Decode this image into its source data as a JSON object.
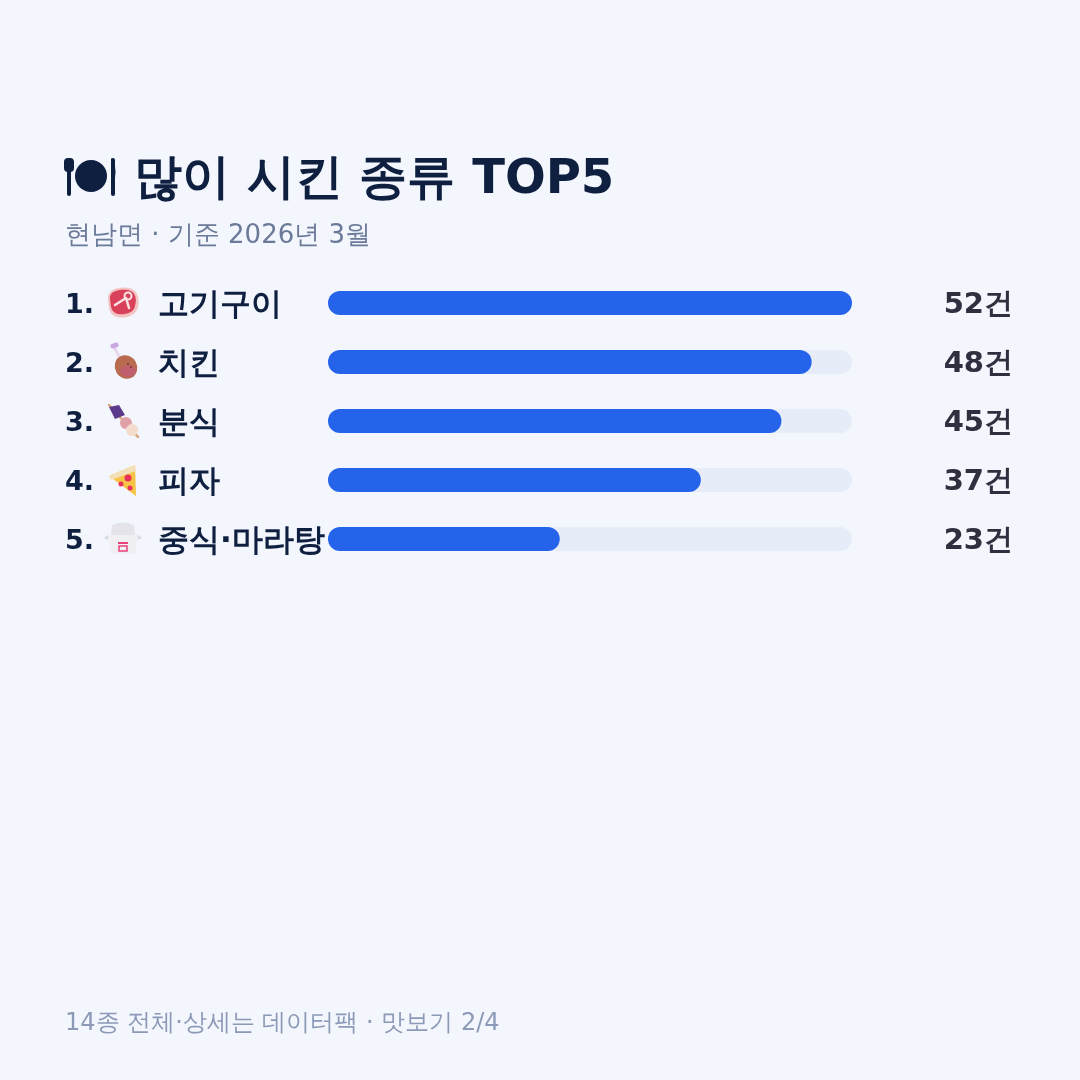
{
  "chart_data": {
    "type": "bar",
    "orientation": "horizontal",
    "title": "많이 시킨 종류 TOP5",
    "subtitle": "현남면 · 기준 2026년 3월",
    "categories": [
      "고기구이",
      "치킨",
      "분식",
      "피자",
      "중식·마라탕"
    ],
    "values": [
      52,
      48,
      45,
      37,
      23
    ],
    "color": "#2563eb",
    "value_labels": [
      "52건",
      "48건",
      "45건",
      "37건",
      "23건"
    ],
    "xlim": [
      0,
      52
    ],
    "tick_labels": "y",
    "annotations": [
      "1.",
      "2.",
      "3.",
      "4.",
      "5.",
      "14종 전체·상세는 데이터팩 · 맛보기 2/4"
    ]
  }
}
